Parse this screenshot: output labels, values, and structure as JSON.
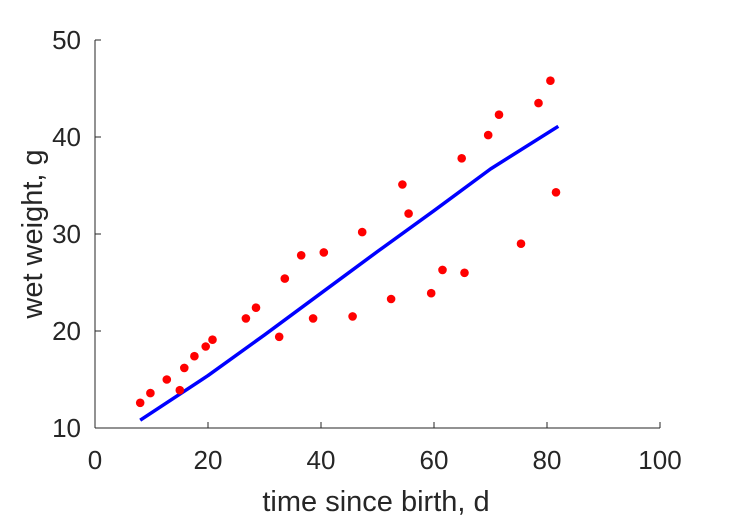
{
  "chart_data": {
    "type": "scatter",
    "title": "",
    "xlabel": "time since birth, d",
    "ylabel": "wet weight, g",
    "xlim": [
      0,
      100
    ],
    "ylim": [
      10,
      50
    ],
    "x_ticks": [
      0,
      20,
      40,
      60,
      80,
      100
    ],
    "y_ticks": [
      10,
      20,
      30,
      40,
      50
    ],
    "grid": false,
    "legend": "none",
    "series": [
      {
        "type": "scatter",
        "color": "#ff0000",
        "points": [
          [
            8,
            12.6
          ],
          [
            9.8,
            13.6
          ],
          [
            12.7,
            15.0
          ],
          [
            15.0,
            13.9
          ],
          [
            15.8,
            16.2
          ],
          [
            17.6,
            17.4
          ],
          [
            19.6,
            18.4
          ],
          [
            20.8,
            19.1
          ],
          [
            26.7,
            21.3
          ],
          [
            28.5,
            22.4
          ],
          [
            32.6,
            19.4
          ],
          [
            33.6,
            25.4
          ],
          [
            36.5,
            27.8
          ],
          [
            38.6,
            21.3
          ],
          [
            40.5,
            28.1
          ],
          [
            45.6,
            21.5
          ],
          [
            47.3,
            30.2
          ],
          [
            52.4,
            23.3
          ],
          [
            54.4,
            35.1
          ],
          [
            55.5,
            32.1
          ],
          [
            59.5,
            23.9
          ],
          [
            61.5,
            26.3
          ],
          [
            64.9,
            37.8
          ],
          [
            65.4,
            26.0
          ],
          [
            69.6,
            40.2
          ],
          [
            71.5,
            42.3
          ],
          [
            75.4,
            29.0
          ],
          [
            78.5,
            43.5
          ],
          [
            80.6,
            45.8
          ],
          [
            81.6,
            34.3
          ]
        ]
      },
      {
        "type": "line",
        "color": "#0000ff",
        "points": [
          [
            8,
            10.8
          ],
          [
            20,
            15.4
          ],
          [
            30,
            19.6
          ],
          [
            40,
            23.9
          ],
          [
            50,
            28.2
          ],
          [
            60,
            32.4
          ],
          [
            70,
            36.7
          ],
          [
            82,
            41.1
          ]
        ]
      }
    ],
    "axis_color": "#262626"
  }
}
